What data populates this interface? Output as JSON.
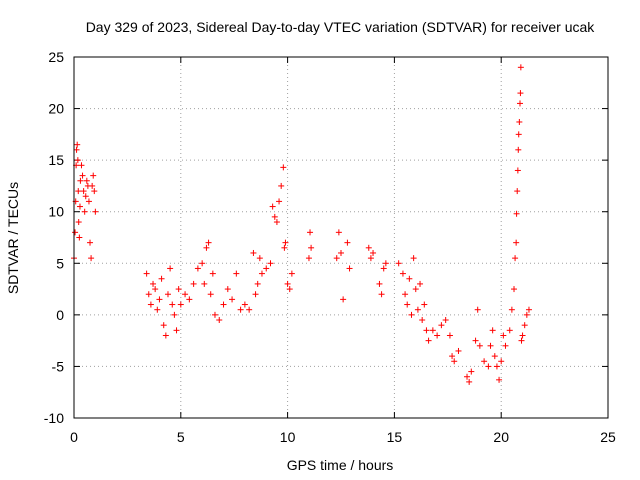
{
  "chart_data": {
    "type": "scatter",
    "title": "Day 329 of 2023, Sidereal Day-to-day VTEC variation (SDTVAR) for receiver ucak",
    "xlabel": "GPS time / hours",
    "ylabel": "SDTVAR / TECUs",
    "xlim": [
      0,
      25
    ],
    "ylim": [
      -10,
      25
    ],
    "xticks": [
      0,
      5,
      10,
      15,
      20,
      25
    ],
    "yticks": [
      -10,
      -5,
      0,
      5,
      10,
      15,
      20,
      25
    ],
    "grid": true,
    "marker": "+",
    "color": "#ff0000",
    "series": [
      {
        "name": "ucak",
        "points": [
          [
            0.0,
            5.5
          ],
          [
            0.05,
            8.0
          ],
          [
            0.08,
            11.0
          ],
          [
            0.1,
            14.5
          ],
          [
            0.12,
            16.0
          ],
          [
            0.15,
            16.5
          ],
          [
            0.18,
            15.0
          ],
          [
            0.2,
            12.0
          ],
          [
            0.22,
            9.0
          ],
          [
            0.25,
            7.5
          ],
          [
            0.28,
            10.5
          ],
          [
            0.3,
            13.0
          ],
          [
            0.35,
            14.5
          ],
          [
            0.4,
            13.5
          ],
          [
            0.45,
            12.0
          ],
          [
            0.5,
            10.0
          ],
          [
            0.55,
            11.5
          ],
          [
            0.6,
            13.0
          ],
          [
            0.65,
            12.5
          ],
          [
            0.7,
            11.0
          ],
          [
            0.75,
            7.0
          ],
          [
            0.8,
            5.5
          ],
          [
            0.85,
            12.5
          ],
          [
            0.9,
            13.5
          ],
          [
            0.95,
            12.0
          ],
          [
            1.0,
            10.0
          ],
          [
            3.4,
            4.0
          ],
          [
            3.5,
            2.0
          ],
          [
            3.6,
            1.0
          ],
          [
            3.7,
            3.0
          ],
          [
            3.8,
            2.5
          ],
          [
            3.9,
            0.5
          ],
          [
            4.0,
            1.5
          ],
          [
            4.1,
            3.5
          ],
          [
            4.2,
            -1.0
          ],
          [
            4.3,
            -2.0
          ],
          [
            4.4,
            2.0
          ],
          [
            4.5,
            4.5
          ],
          [
            4.6,
            1.0
          ],
          [
            4.7,
            0.0
          ],
          [
            4.8,
            -1.5
          ],
          [
            4.9,
            2.5
          ],
          [
            5.0,
            1.0
          ],
          [
            5.2,
            2.0
          ],
          [
            5.4,
            1.5
          ],
          [
            5.6,
            3.0
          ],
          [
            5.8,
            4.5
          ],
          [
            6.0,
            5.0
          ],
          [
            6.1,
            3.0
          ],
          [
            6.2,
            6.5
          ],
          [
            6.3,
            7.0
          ],
          [
            6.4,
            2.0
          ],
          [
            6.5,
            4.0
          ],
          [
            6.6,
            0.0
          ],
          [
            6.8,
            -0.5
          ],
          [
            7.0,
            1.0
          ],
          [
            7.2,
            2.5
          ],
          [
            7.4,
            1.5
          ],
          [
            7.6,
            4.0
          ],
          [
            7.8,
            0.5
          ],
          [
            8.0,
            1.0
          ],
          [
            8.2,
            0.5
          ],
          [
            8.4,
            6.0
          ],
          [
            8.5,
            2.0
          ],
          [
            8.6,
            3.0
          ],
          [
            8.7,
            5.5
          ],
          [
            8.8,
            4.0
          ],
          [
            9.0,
            4.5
          ],
          [
            9.2,
            5.0
          ],
          [
            9.3,
            10.5
          ],
          [
            9.4,
            9.5
          ],
          [
            9.5,
            9.0
          ],
          [
            9.6,
            11.0
          ],
          [
            9.7,
            12.5
          ],
          [
            9.8,
            14.3
          ],
          [
            9.85,
            6.5
          ],
          [
            9.9,
            7.0
          ],
          [
            10.0,
            3.0
          ],
          [
            10.1,
            2.5
          ],
          [
            10.2,
            4.0
          ],
          [
            11.0,
            5.5
          ],
          [
            11.05,
            8.0
          ],
          [
            11.1,
            6.5
          ],
          [
            12.3,
            5.5
          ],
          [
            12.4,
            8.0
          ],
          [
            12.5,
            6.0
          ],
          [
            12.6,
            1.5
          ],
          [
            12.8,
            7.0
          ],
          [
            12.9,
            4.5
          ],
          [
            13.8,
            6.5
          ],
          [
            13.9,
            5.5
          ],
          [
            14.0,
            6.0
          ],
          [
            14.3,
            3.0
          ],
          [
            14.4,
            2.0
          ],
          [
            14.5,
            4.5
          ],
          [
            14.6,
            5.0
          ],
          [
            15.2,
            5.0
          ],
          [
            15.4,
            4.0
          ],
          [
            15.5,
            2.0
          ],
          [
            15.6,
            1.0
          ],
          [
            15.7,
            3.5
          ],
          [
            15.8,
            0.0
          ],
          [
            15.9,
            5.5
          ],
          [
            16.0,
            2.5
          ],
          [
            16.1,
            0.5
          ],
          [
            16.2,
            3.0
          ],
          [
            16.3,
            -0.5
          ],
          [
            16.4,
            1.0
          ],
          [
            16.5,
            -1.5
          ],
          [
            16.6,
            -2.5
          ],
          [
            16.8,
            -1.5
          ],
          [
            17.0,
            -2.0
          ],
          [
            17.2,
            -1.0
          ],
          [
            17.4,
            -0.5
          ],
          [
            17.6,
            -2.0
          ],
          [
            17.7,
            -4.0
          ],
          [
            17.8,
            -4.5
          ],
          [
            18.0,
            -3.5
          ],
          [
            18.4,
            -6.0
          ],
          [
            18.5,
            -6.5
          ],
          [
            18.6,
            -5.5
          ],
          [
            18.8,
            -2.5
          ],
          [
            18.9,
            0.5
          ],
          [
            19.0,
            -3.0
          ],
          [
            19.2,
            -4.5
          ],
          [
            19.4,
            -5.0
          ],
          [
            19.5,
            -3.0
          ],
          [
            19.6,
            -1.5
          ],
          [
            19.7,
            -4.0
          ],
          [
            19.8,
            -5.0
          ],
          [
            19.9,
            -6.3
          ],
          [
            20.0,
            -4.5
          ],
          [
            20.1,
            -2.0
          ],
          [
            20.2,
            -3.0
          ],
          [
            20.4,
            -1.5
          ],
          [
            20.5,
            0.5
          ],
          [
            20.6,
            2.5
          ],
          [
            20.65,
            5.5
          ],
          [
            20.7,
            7.0
          ],
          [
            20.72,
            9.8
          ],
          [
            20.75,
            12.0
          ],
          [
            20.78,
            14.0
          ],
          [
            20.8,
            16.0
          ],
          [
            20.82,
            17.5
          ],
          [
            20.85,
            18.7
          ],
          [
            20.88,
            20.5
          ],
          [
            20.9,
            21.5
          ],
          [
            20.92,
            24.0
          ],
          [
            20.95,
            -2.5
          ],
          [
            21.0,
            -2.0
          ],
          [
            21.1,
            -1.0
          ],
          [
            21.2,
            0.0
          ],
          [
            21.3,
            0.5
          ]
        ]
      }
    ]
  }
}
